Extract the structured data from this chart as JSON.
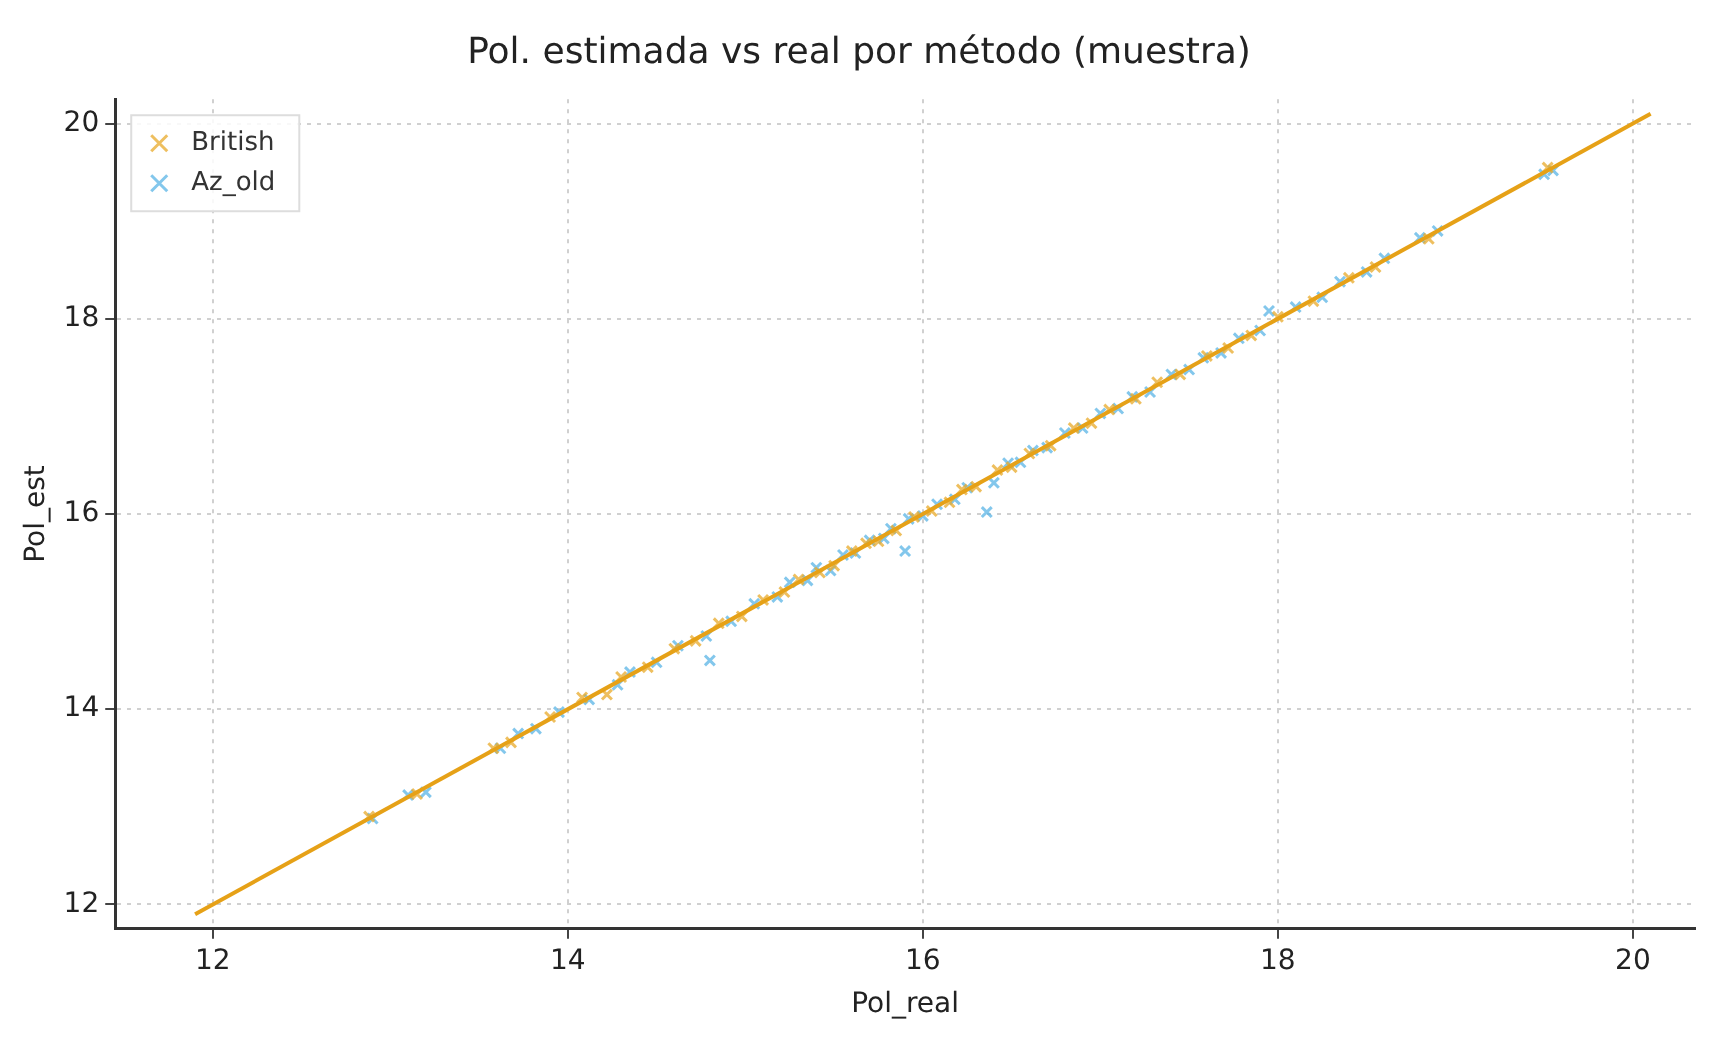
{
  "chart_data": {
    "type": "scatter",
    "title": "Pol. estimada vs real por método (muestra)",
    "xlabel": "Pol_real",
    "ylabel": "Pol_est",
    "xlim": [
      11.45,
      20.35
    ],
    "ylim": [
      11.75,
      20.25
    ],
    "xticks": [
      12,
      14,
      16,
      18,
      20
    ],
    "yticks": [
      12,
      14,
      16,
      18,
      20
    ],
    "grid": true,
    "legend": "top left",
    "series": [
      {
        "name": "British",
        "type": "scatter",
        "marker": "cross",
        "color": "#e8a92a",
        "x": [
          12.88,
          13.15,
          13.58,
          13.68,
          13.9,
          14.08,
          14.22,
          14.3,
          14.45,
          14.6,
          14.72,
          14.85,
          14.98,
          15.1,
          15.22,
          15.3,
          15.42,
          15.5,
          15.6,
          15.68,
          15.75,
          15.85,
          15.95,
          16.05,
          16.15,
          16.22,
          16.3,
          16.42,
          16.5,
          16.6,
          16.72,
          16.85,
          16.95,
          17.05,
          17.2,
          17.32,
          17.45,
          17.6,
          17.72,
          17.85,
          18.0,
          18.2,
          18.4,
          18.55,
          18.85,
          19.52
        ],
        "values": [
          12.9,
          13.13,
          13.6,
          13.66,
          13.92,
          14.12,
          14.15,
          14.33,
          14.43,
          14.62,
          14.7,
          14.88,
          14.95,
          15.12,
          15.2,
          15.33,
          15.4,
          15.47,
          15.62,
          15.7,
          15.72,
          15.83,
          15.97,
          16.03,
          16.12,
          16.25,
          16.28,
          16.45,
          16.48,
          16.62,
          16.7,
          16.88,
          16.93,
          17.07,
          17.18,
          17.35,
          17.43,
          17.62,
          17.7,
          17.83,
          18.02,
          18.18,
          18.42,
          18.53,
          18.82,
          19.55
        ]
      },
      {
        "name": "Az_old",
        "type": "scatter",
        "marker": "cross",
        "color": "#5ab4e5",
        "x": [
          12.9,
          13.1,
          13.2,
          13.62,
          13.72,
          13.82,
          13.95,
          14.12,
          14.28,
          14.35,
          14.5,
          14.62,
          14.78,
          14.8,
          14.92,
          15.05,
          15.18,
          15.25,
          15.35,
          15.4,
          15.48,
          15.55,
          15.62,
          15.7,
          15.78,
          15.82,
          15.9,
          15.92,
          16.0,
          16.08,
          16.18,
          16.25,
          16.36,
          16.4,
          16.48,
          16.55,
          16.62,
          16.7,
          16.8,
          16.9,
          17.0,
          17.1,
          17.18,
          17.28,
          17.4,
          17.5,
          17.58,
          17.68,
          17.78,
          17.9,
          17.95,
          18.1,
          18.25,
          18.35,
          18.5,
          18.6,
          18.8,
          18.9,
          19.5,
          19.55
        ],
        "values": [
          12.88,
          13.12,
          13.15,
          13.6,
          13.75,
          13.8,
          13.97,
          14.1,
          14.25,
          14.38,
          14.48,
          14.65,
          14.75,
          14.5,
          14.9,
          15.08,
          15.15,
          15.3,
          15.32,
          15.45,
          15.42,
          15.58,
          15.6,
          15.73,
          15.75,
          15.85,
          15.62,
          15.95,
          15.98,
          16.1,
          16.15,
          16.27,
          16.02,
          16.32,
          16.52,
          16.53,
          16.65,
          16.68,
          16.83,
          16.88,
          17.03,
          17.08,
          17.2,
          17.25,
          17.43,
          17.48,
          17.6,
          17.65,
          17.8,
          17.88,
          18.08,
          18.12,
          18.22,
          18.38,
          18.48,
          18.62,
          18.83,
          18.9,
          19.48,
          19.52
        ]
      },
      {
        "type": "line",
        "marker": "none",
        "line_style": "solid",
        "color": "#e6a117",
        "x": [
          11.9,
          20.1
        ],
        "values": [
          11.9,
          20.1
        ]
      }
    ]
  }
}
